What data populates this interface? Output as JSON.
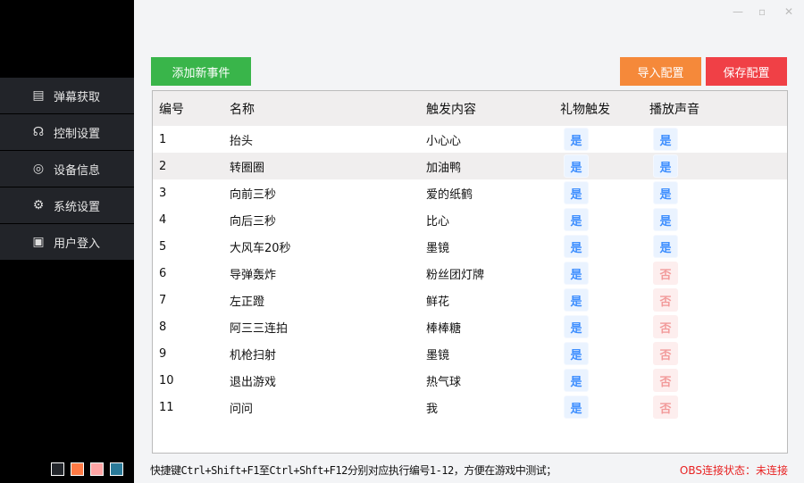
{
  "sidebar": {
    "items": [
      {
        "label": "弹幕获取",
        "icon": "barrage-icon"
      },
      {
        "label": "控制设置",
        "icon": "control-icon"
      },
      {
        "label": "设备信息",
        "icon": "device-icon"
      },
      {
        "label": "系统设置",
        "icon": "gear-icon"
      },
      {
        "label": "用户登入",
        "icon": "user-card-icon"
      }
    ],
    "theme_colors": [
      "#23262b",
      "#ff7a45",
      "#ffa5a5",
      "#2a7a99"
    ]
  },
  "window": {
    "minimize": "—",
    "maximize": "▫",
    "close": "✕"
  },
  "toolbar": {
    "add": "添加新事件",
    "import": "导入配置",
    "save": "保存配置",
    "colors": {
      "add": "#39b54a",
      "import": "#f5893a",
      "save": "#f04046"
    }
  },
  "table": {
    "headers": [
      "编号",
      "名称",
      "触发内容",
      "礼物触发",
      "播放声音"
    ],
    "rows": [
      [
        "1",
        "抬头",
        "小心心",
        "是",
        "是"
      ],
      [
        "2",
        "转圈圈",
        "加油鸭",
        "是",
        "是"
      ],
      [
        "3",
        "向前三秒",
        "爱的纸鹤",
        "是",
        "是"
      ],
      [
        "4",
        "向后三秒",
        "比心",
        "是",
        "是"
      ],
      [
        "5",
        "大风车20秒",
        "墨镜",
        "是",
        "是"
      ],
      [
        "6",
        "导弹轰炸",
        "粉丝团灯牌",
        "是",
        "否"
      ],
      [
        "7",
        "左正蹬",
        "鲜花",
        "是",
        "否"
      ],
      [
        "8",
        "阿三三连拍",
        "棒棒糖",
        "是",
        "否"
      ],
      [
        "9",
        "机枪扫射",
        "墨镜",
        "是",
        "否"
      ],
      [
        "10",
        "退出游戏",
        "热气球",
        "是",
        "否"
      ],
      [
        "11",
        "问问",
        "我",
        "是",
        "否"
      ]
    ]
  },
  "footer": {
    "hint": "快捷键Ctrl+Shift+F1至Ctrl+Shft+F12分别对应执行编号1-12，方便在游戏中测试；",
    "obs_status": "OBS连接状态：未连接"
  }
}
